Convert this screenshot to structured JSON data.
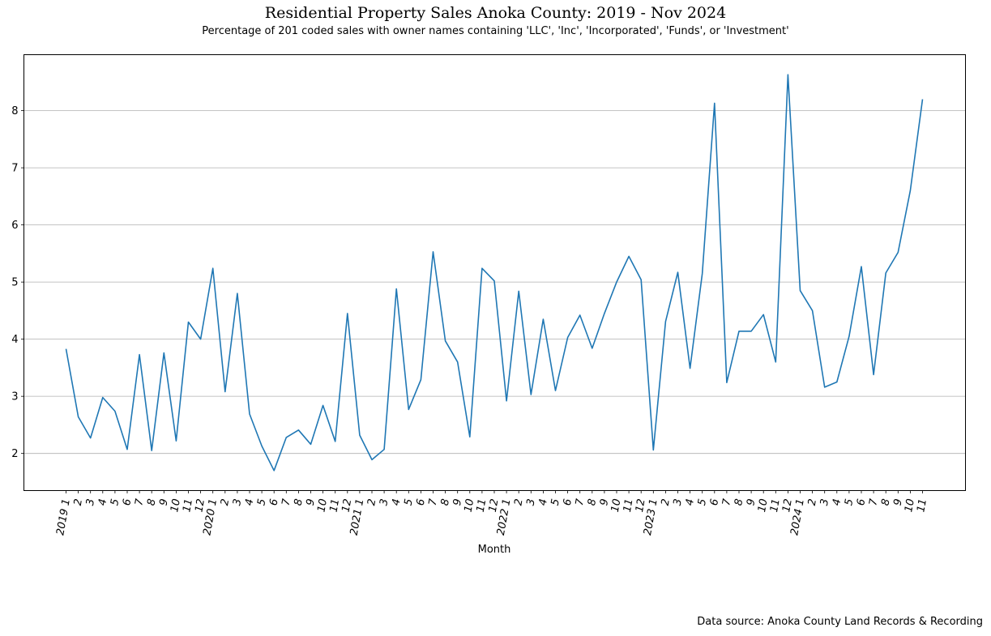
{
  "chart_data": {
    "type": "line",
    "title": "Residential Property Sales Anoka County: 2019 - Nov 2024",
    "subtitle": "Percentage of 201 coded sales with owner names containing 'LLC', 'Inc', 'Incorporated', 'Funds', or 'Investment'",
    "xlabel": "Month",
    "ylabel": "",
    "source": "Data source: Anoka County Land Records & Recording",
    "grid": "y",
    "ylim": [
      1.35,
      8.98
    ],
    "yticks": [
      2,
      3,
      4,
      5,
      6,
      7,
      8
    ],
    "color": "#1f77b4",
    "x": [
      "2019 1",
      "2",
      "3",
      "4",
      "5",
      "6",
      "7",
      "8",
      "9",
      "10",
      "11",
      "12",
      "2020 1",
      "2",
      "3",
      "4",
      "5",
      "6",
      "7",
      "8",
      "9",
      "10",
      "11",
      "12",
      "2021 1",
      "2",
      "3",
      "4",
      "5",
      "6",
      "7",
      "8",
      "9",
      "10",
      "11",
      "12",
      "2022 1",
      "2",
      "3",
      "4",
      "5",
      "6",
      "7",
      "8",
      "9",
      "10",
      "11",
      "12",
      "2023 1",
      "2",
      "3",
      "4",
      "5",
      "6",
      "7",
      "8",
      "9",
      "10",
      "11",
      "12",
      "2024 1",
      "2",
      "3",
      "4",
      "5",
      "6",
      "7",
      "8",
      "9",
      "10",
      "11"
    ],
    "values": [
      3.83,
      2.64,
      2.27,
      2.98,
      2.74,
      2.07,
      3.73,
      2.05,
      3.76,
      2.22,
      4.3,
      4.0,
      5.24,
      3.08,
      4.8,
      2.69,
      2.13,
      1.7,
      2.28,
      2.41,
      2.16,
      2.84,
      2.21,
      4.45,
      2.32,
      1.89,
      2.07,
      4.88,
      2.77,
      3.29,
      5.53,
      3.97,
      3.6,
      2.29,
      5.24,
      5.02,
      2.92,
      4.84,
      3.03,
      4.35,
      3.1,
      4.03,
      4.42,
      3.84,
      4.45,
      5.0,
      5.45,
      5.04,
      2.06,
      4.31,
      5.17,
      3.49,
      5.15,
      8.13,
      3.24,
      4.14,
      4.14,
      4.43,
      3.6,
      8.63,
      4.85,
      4.5,
      3.16,
      3.25,
      4.05,
      5.27,
      3.38,
      5.16,
      5.52,
      6.6,
      8.2
    ]
  }
}
